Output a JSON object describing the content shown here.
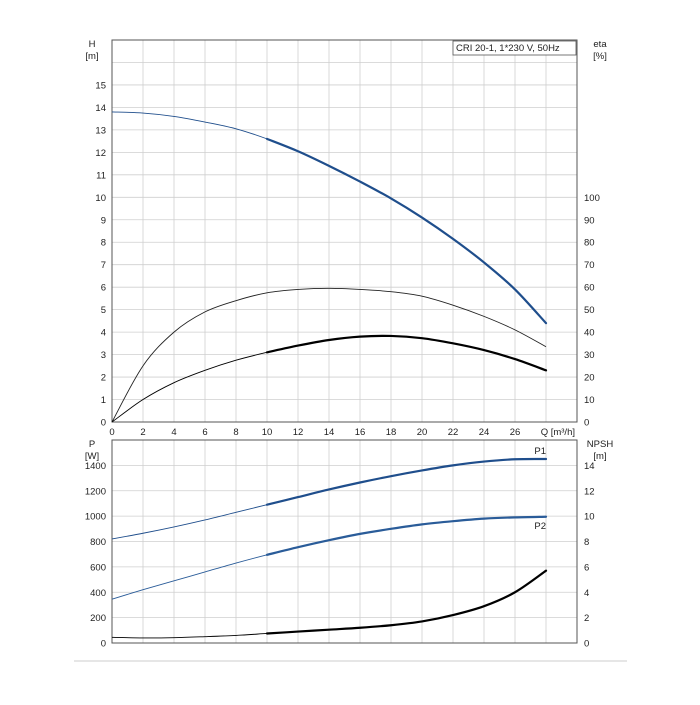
{
  "chart_data": [
    {
      "type": "line",
      "title": "CRI 20-1, 1*230 V, 50Hz",
      "y_left_label": [
        "H",
        "[m]"
      ],
      "y_right_label": [
        "eta",
        "[%]"
      ],
      "xlabel": "Q [m³/h]",
      "x_ticks": [
        "0",
        "2",
        "4",
        "6",
        "8",
        "10",
        "12",
        "14",
        "16",
        "18",
        "20",
        "22",
        "24",
        "26"
      ],
      "y_left_ticks": [
        "0",
        "1",
        "2",
        "3",
        "4",
        "5",
        "6",
        "7",
        "8",
        "9",
        "10",
        "11",
        "12",
        "13",
        "14",
        "15"
      ],
      "y_right_ticks": [
        "0",
        "10",
        "20",
        "30",
        "40",
        "50",
        "60",
        "70",
        "80",
        "90",
        "100"
      ],
      "xlim": [
        0,
        30
      ],
      "y_left_lim": [
        0,
        17
      ],
      "y_right_lim": [
        0,
        170
      ],
      "grid": true,
      "series": [
        {
          "axis": "left",
          "color": "#1f4e8c",
          "x": [
            0,
            2,
            4,
            6,
            8,
            10,
            12,
            14,
            16,
            18,
            20,
            22,
            24,
            26,
            28
          ],
          "y": [
            13.8,
            13.75,
            13.6,
            13.35,
            13.05,
            12.6,
            12.05,
            11.4,
            10.7,
            9.95,
            9.1,
            8.15,
            7.1,
            5.9,
            4.4
          ]
        },
        {
          "axis": "right",
          "color": "#222222",
          "x": [
            0,
            2,
            4,
            6,
            8,
            10,
            12,
            14,
            16,
            18,
            20,
            22,
            24,
            26,
            28
          ],
          "y": [
            0,
            25,
            40,
            49,
            54,
            57.5,
            59,
            59.5,
            59,
            58,
            56,
            52,
            47,
            41,
            33.5
          ]
        },
        {
          "axis": "right",
          "color": "#000000",
          "x": [
            0,
            2,
            4,
            6,
            8,
            10,
            12,
            14,
            16,
            18,
            20,
            22,
            24,
            26,
            28
          ],
          "y": [
            0,
            10,
            17.5,
            23,
            27.5,
            31,
            34,
            36.5,
            38,
            38.3,
            37.3,
            35,
            32,
            28,
            23
          ]
        }
      ]
    },
    {
      "type": "line",
      "y_left_label": [
        "P",
        "[W]"
      ],
      "y_right_label": [
        "NPSH",
        "[m]"
      ],
      "y_left_ticks": [
        "0",
        "200",
        "400",
        "600",
        "800",
        "1000",
        "1200",
        "1400"
      ],
      "y_right_ticks": [
        "0",
        "2",
        "4",
        "6",
        "8",
        "10",
        "12",
        "14"
      ],
      "xlim": [
        0,
        30
      ],
      "y_left_lim": [
        0,
        1600
      ],
      "y_right_lim": [
        0,
        16
      ],
      "grid": true,
      "series": [
        {
          "name": "P1",
          "axis": "left",
          "color": "#1f4e8c",
          "x": [
            0,
            2,
            4,
            6,
            8,
            10,
            12,
            14,
            16,
            18,
            20,
            22,
            24,
            26,
            28
          ],
          "y": [
            820,
            865,
            915,
            970,
            1030,
            1090,
            1150,
            1210,
            1265,
            1315,
            1360,
            1400,
            1430,
            1448,
            1450
          ]
        },
        {
          "name": "P2",
          "axis": "left",
          "color": "#2a5c99",
          "x": [
            0,
            2,
            4,
            6,
            8,
            10,
            12,
            14,
            16,
            18,
            20,
            22,
            24,
            26,
            28
          ],
          "y": [
            345,
            420,
            490,
            560,
            630,
            695,
            755,
            810,
            860,
            900,
            935,
            960,
            980,
            990,
            995
          ]
        },
        {
          "axis": "right",
          "color": "#000000",
          "x": [
            0,
            2,
            4,
            6,
            8,
            10,
            12,
            14,
            16,
            18,
            20,
            22,
            24,
            26,
            28
          ],
          "y": [
            0.45,
            0.4,
            0.42,
            0.5,
            0.6,
            0.75,
            0.9,
            1.05,
            1.2,
            1.4,
            1.7,
            2.2,
            2.9,
            4.0,
            5.7
          ]
        }
      ]
    }
  ]
}
